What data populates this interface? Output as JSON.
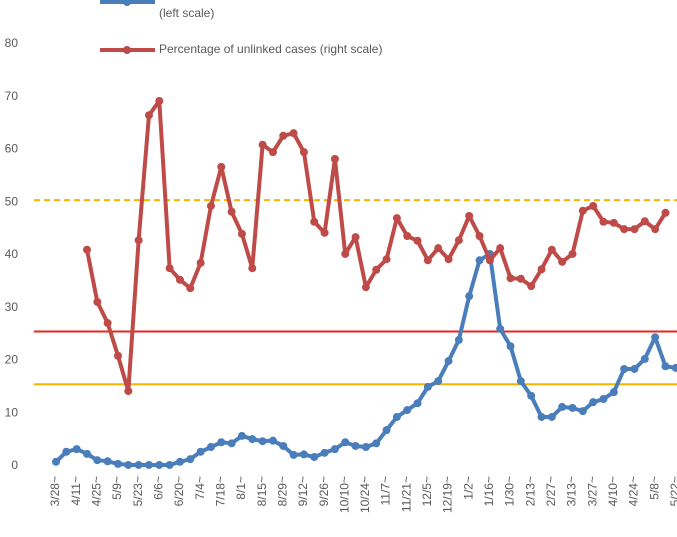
{
  "chart_data": {
    "type": "line",
    "categories": [
      "3/28~",
      null,
      "4/11~",
      null,
      "4/25~",
      null,
      "5/9~",
      null,
      "5/23~",
      null,
      "6/6~",
      null,
      "6/20~",
      null,
      "7/4~",
      null,
      "7/18~",
      null,
      "8/1~",
      null,
      "8/15~",
      null,
      "8/29~",
      null,
      "9/12~",
      null,
      "9/26~",
      null,
      "10/10~",
      null,
      "10/24~",
      null,
      "11/7~",
      null,
      "11/21~",
      null,
      "12/5~",
      null,
      "12/19~",
      null,
      "1/2~",
      null,
      "1/16~",
      null,
      "1/30~",
      null,
      "2/13~",
      null,
      "2/27~",
      null,
      "3/13~",
      null,
      "3/27~",
      null,
      "4/10~",
      null,
      "4/24~",
      null,
      "5/8~",
      null,
      "5/22~"
    ],
    "series": [
      {
        "name": "(left scale)",
        "color": "#4a7ebb",
        "values": [
          0.8,
          2.7,
          3.2,
          2.3,
          1.1,
          0.9,
          0.4,
          0.2,
          0.2,
          0.2,
          0.2,
          0.2,
          0.8,
          1.3,
          2.7,
          3.6,
          4.5,
          4.3,
          5.7,
          5.1,
          4.7,
          4.8,
          3.8,
          2.1,
          2.2,
          1.7,
          2.5,
          3.2,
          4.5,
          3.8,
          3.6,
          4.3,
          6.8,
          9.3,
          10.6,
          11.9,
          15,
          16.1,
          19.9,
          23.9,
          32.2,
          39,
          40.2,
          26,
          22.7,
          16.1,
          13.3,
          9.3,
          9.3,
          11.2,
          11,
          10.4,
          12.1,
          12.7,
          14,
          18.4,
          18.4,
          20.3,
          24.4,
          18.9,
          18.6
        ]
      },
      {
        "name": "Percentage of unlinked cases (right scale)",
        "color": "#be4b48",
        "values": [
          null,
          null,
          null,
          41,
          31.1,
          27.1,
          20.9,
          14.2,
          42.8,
          66.5,
          69.2,
          37.5,
          35.3,
          33.7,
          38.5,
          49.3,
          56.7,
          48.2,
          44,
          37.5,
          60.9,
          59.5,
          62.6,
          63.1,
          59.5,
          46.3,
          44.2,
          58.2,
          40.2,
          43.4,
          33.9,
          37.2,
          39.2,
          47,
          43.6,
          42.7,
          39,
          41.3,
          39.2,
          42.8,
          47.4,
          43.6,
          39,
          41.3,
          35.6,
          35.5,
          34.1,
          37.3,
          41,
          38.7,
          40.2,
          48.4,
          49.3,
          46.3,
          46.1,
          44.9,
          44.9,
          46.4,
          44.9,
          48,
          null
        ]
      }
    ],
    "reference_lines": [
      {
        "value": 50.4,
        "color": "#f5b400",
        "style": "dashed"
      },
      {
        "value": 25.5,
        "color": "#e8261f",
        "style": "solid"
      },
      {
        "value": 15.5,
        "color": "#f5b400",
        "style": "solid"
      }
    ],
    "ylim": [
      0,
      80
    ],
    "yticks": [
      0,
      10,
      20,
      30,
      40,
      50,
      60,
      70,
      80
    ],
    "grid": false
  }
}
